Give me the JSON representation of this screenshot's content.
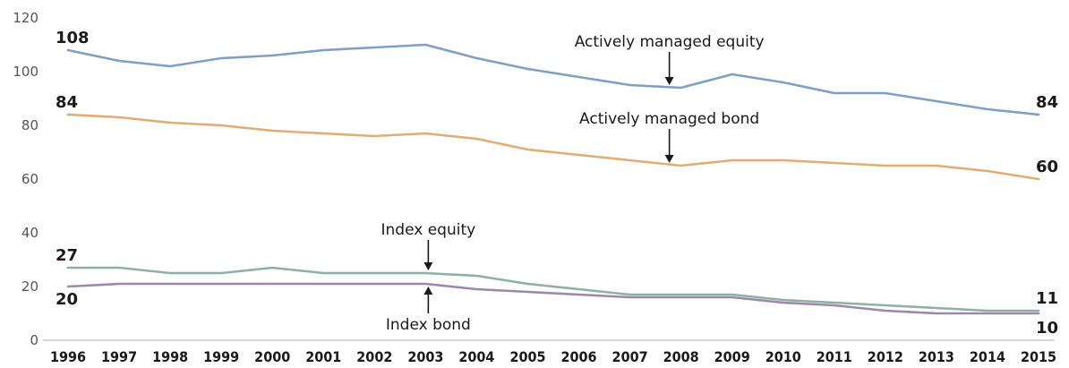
{
  "chart_data": {
    "type": "line",
    "title": "",
    "xlabel": "",
    "ylabel": "",
    "x": [
      "1996",
      "1997",
      "1998",
      "1999",
      "2000",
      "2001",
      "2002",
      "2003",
      "2004",
      "2005",
      "2006",
      "2007",
      "2008",
      "2009",
      "2010",
      "2011",
      "2012",
      "2013",
      "2014",
      "2015"
    ],
    "ylim": [
      0,
      120
    ],
    "yticks": [
      "0",
      "20",
      "40",
      "60",
      "80",
      "100",
      "120"
    ],
    "grid": false,
    "legend": "none",
    "series": [
      {
        "name": "Actively managed equity",
        "color": "#7f9fc6",
        "values": [
          108,
          104,
          102,
          105,
          106,
          108,
          109,
          110,
          105,
          101,
          98,
          95,
          94,
          99,
          96,
          92,
          92,
          89,
          86,
          84
        ],
        "start_label": "108",
        "end_label": "84",
        "annotation_x": "2008"
      },
      {
        "name": "Actively managed bond",
        "color": "#e0ad74",
        "values": [
          84,
          83,
          81,
          80,
          78,
          77,
          76,
          77,
          75,
          71,
          69,
          67,
          65,
          67,
          67,
          66,
          65,
          65,
          63,
          60
        ],
        "start_label": "84",
        "end_label": "60",
        "annotation_x": "2008"
      },
      {
        "name": "Index equity",
        "color": "#8fb0a2",
        "values": [
          27,
          27,
          25,
          25,
          27,
          25,
          25,
          25,
          24,
          21,
          19,
          17,
          17,
          17,
          15,
          14,
          13,
          12,
          11,
          11
        ],
        "start_label": "27",
        "end_label": "11",
        "annotation_x": "2003"
      },
      {
        "name": "Index bond",
        "color": "#9c88aa",
        "values": [
          20,
          21,
          21,
          21,
          21,
          21,
          21,
          21,
          19,
          18,
          17,
          16,
          16,
          16,
          14,
          13,
          11,
          10,
          10,
          10
        ],
        "start_label": "20",
        "end_label": "10",
        "annotation_x": "2003"
      }
    ]
  }
}
